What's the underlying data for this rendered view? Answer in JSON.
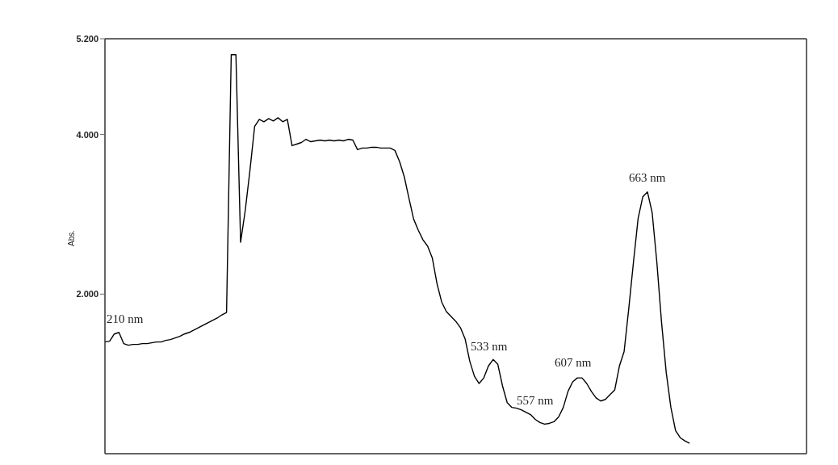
{
  "chart_data": {
    "type": "line",
    "ylabel": "Abs.",
    "color": "#000000",
    "categories": [
      null,
      null,
      null,
      null,
      null,
      null,
      null,
      null,
      null,
      null,
      null,
      null,
      null,
      null,
      null,
      null,
      null,
      null,
      null,
      null,
      null,
      null,
      null,
      null,
      null,
      null,
      null,
      null,
      null,
      null,
      null,
      null,
      null,
      null,
      null,
      null,
      null,
      null,
      null,
      null,
      null,
      null,
      null,
      null,
      null,
      null,
      null,
      null,
      null,
      null,
      null,
      null,
      null,
      null,
      null,
      null,
      null,
      null,
      null,
      null,
      null,
      null,
      null,
      null,
      null,
      null,
      null,
      null,
      null,
      null,
      null,
      null,
      null,
      null,
      null,
      null,
      null,
      null,
      null,
      null,
      null,
      null,
      null,
      null,
      null,
      null,
      null,
      null,
      null,
      null,
      null,
      null,
      null,
      null,
      null,
      null,
      null,
      null,
      null,
      null,
      null,
      null,
      null,
      null,
      null,
      null,
      null,
      null,
      null,
      null,
      null,
      null,
      null,
      null,
      null,
      null,
      null,
      null,
      null,
      null,
      null,
      null,
      null,
      null,
      null,
      null,
      null,
      null,
      null,
      null,
      null,
      null,
      null,
      null,
      null,
      null,
      null,
      null,
      null,
      null,
      null,
      null,
      null,
      null,
      null,
      null,
      null,
      null,
      null,
      null,
      null
    ],
    "values": [
      1.4,
      1.41,
      1.5,
      1.52,
      1.38,
      1.36,
      1.37,
      1.37,
      1.38,
      1.38,
      1.39,
      1.4,
      1.4,
      1.42,
      1.43,
      1.45,
      1.47,
      1.5,
      1.52,
      1.55,
      1.58,
      1.61,
      1.64,
      1.67,
      1.7,
      1.74,
      1.77,
      5.0,
      5.0,
      2.65,
      3.05,
      3.55,
      4.1,
      4.19,
      4.16,
      4.2,
      4.17,
      4.21,
      4.16,
      4.19,
      3.86,
      3.88,
      3.9,
      3.94,
      3.91,
      3.92,
      3.93,
      3.92,
      3.93,
      3.92,
      3.93,
      3.92,
      3.94,
      3.93,
      3.81,
      3.83,
      3.83,
      3.84,
      3.84,
      3.83,
      3.83,
      3.83,
      3.8,
      3.66,
      3.47,
      3.2,
      2.94,
      2.8,
      2.68,
      2.6,
      2.45,
      2.13,
      1.9,
      1.78,
      1.72,
      1.66,
      1.58,
      1.44,
      1.16,
      0.97,
      0.88,
      0.95,
      1.1,
      1.18,
      1.12,
      0.85,
      0.64,
      0.58,
      0.57,
      0.55,
      0.52,
      0.49,
      0.43,
      0.39,
      0.37,
      0.38,
      0.4,
      0.46,
      0.58,
      0.78,
      0.9,
      0.95,
      0.95,
      0.88,
      0.78,
      0.7,
      0.66,
      0.68,
      0.74,
      0.8,
      1.1,
      1.28,
      1.82,
      2.4,
      2.95,
      3.22,
      3.28,
      3.02,
      2.4,
      1.65,
      1.02,
      0.58,
      0.29,
      0.2,
      0.16,
      0.13,
      null,
      null,
      null,
      null,
      null,
      null,
      null,
      null,
      null,
      null,
      null,
      null,
      null,
      null,
      null,
      null,
      null,
      null,
      null,
      null,
      null,
      null,
      null,
      null,
      null
    ],
    "ylim": [
      0,
      5.2
    ],
    "yticks": [
      {
        "value": 2,
        "label": "2.000"
      },
      {
        "value": 4,
        "label": "4.000"
      },
      {
        "value": 5.2,
        "label": "5.200"
      }
    ],
    "tick_labels": "y",
    "annotations": [
      "210 nm",
      "533 nm",
      "557 nm",
      "607 nm",
      "663 nm"
    ]
  }
}
